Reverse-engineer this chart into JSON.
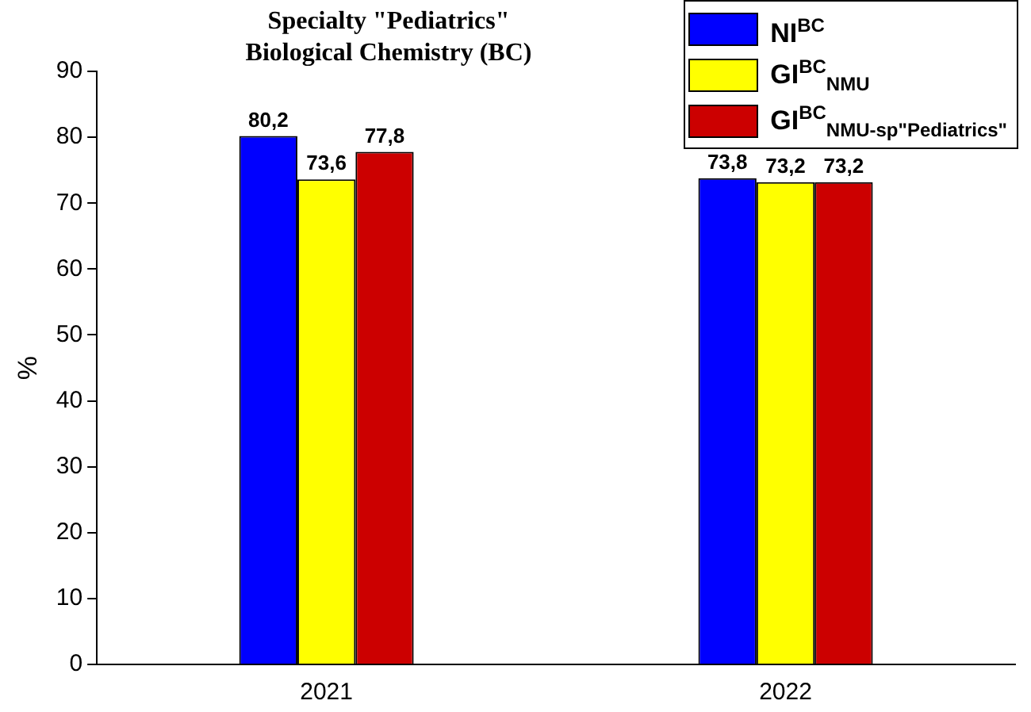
{
  "chart_data": {
    "type": "bar",
    "title": "Specialty \"Pediatrics\"",
    "subtitle": "Biological Chemistry (BC)",
    "ylabel": "%",
    "categories": [
      "2021",
      "2022"
    ],
    "series": [
      {
        "name": "NI$^{BC}$",
        "color": "#0000ff",
        "values": [
          80.2,
          73.8
        ],
        "value_labels": [
          "80,2",
          "73,8"
        ]
      },
      {
        "name": "GI$^{BC}$$_{NMU}$",
        "color": "#ffff00",
        "values": [
          73.6,
          73.2
        ],
        "value_labels": [
          "73,6",
          "73,2"
        ]
      },
      {
        "name": "GI$^{BC}$$_{NMU-sp\"Pediatrics\"}$",
        "color": "#cc0000",
        "values": [
          77.8,
          73.2
        ],
        "value_labels": [
          "77,8",
          "73,2"
        ]
      }
    ],
    "ylim": [
      0,
      90
    ],
    "yticks": [
      0,
      10,
      20,
      30,
      40,
      50,
      60,
      70,
      80,
      90
    ],
    "grid": false,
    "legend": "top right"
  }
}
